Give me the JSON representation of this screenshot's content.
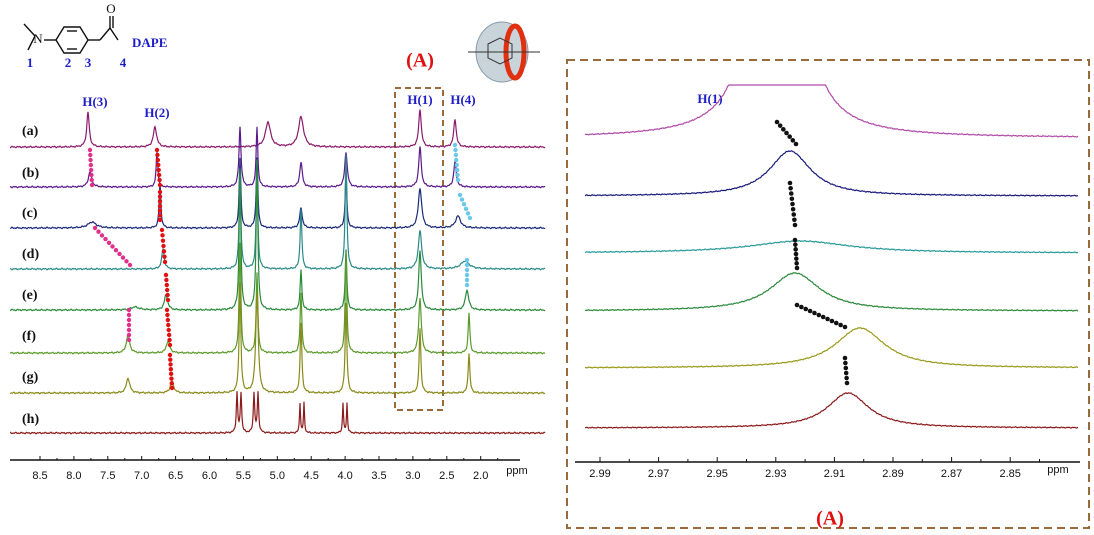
{
  "structure": {
    "name": "DAPE",
    "atoms": [
      "1",
      "2",
      "3",
      "4"
    ]
  },
  "left": {
    "peaks": [
      "H(3)",
      "H(2)",
      "H(1)",
      "H(4)"
    ],
    "spectra": [
      "(a)",
      "(b)",
      "(c)",
      "(d)",
      "(e)",
      "(f)",
      "(g)",
      "(h)"
    ],
    "box": "(A)",
    "axis": {
      "ticks": [
        "8.5",
        "8.0",
        "7.5",
        "7.0",
        "6.5",
        "6.0",
        "5.5",
        "5.0",
        "4.5",
        "4.0",
        "3.5",
        "3.0",
        "2.5",
        "2.0"
      ],
      "unit": "ppm"
    }
  },
  "right": {
    "peak": "H(1)",
    "axis": {
      "ticks": [
        "2.99",
        "2.97",
        "2.95",
        "2.93",
        "2.91",
        "2.89",
        "2.87",
        "2.85"
      ],
      "unit": "ppm"
    },
    "label": "(A)"
  }
}
